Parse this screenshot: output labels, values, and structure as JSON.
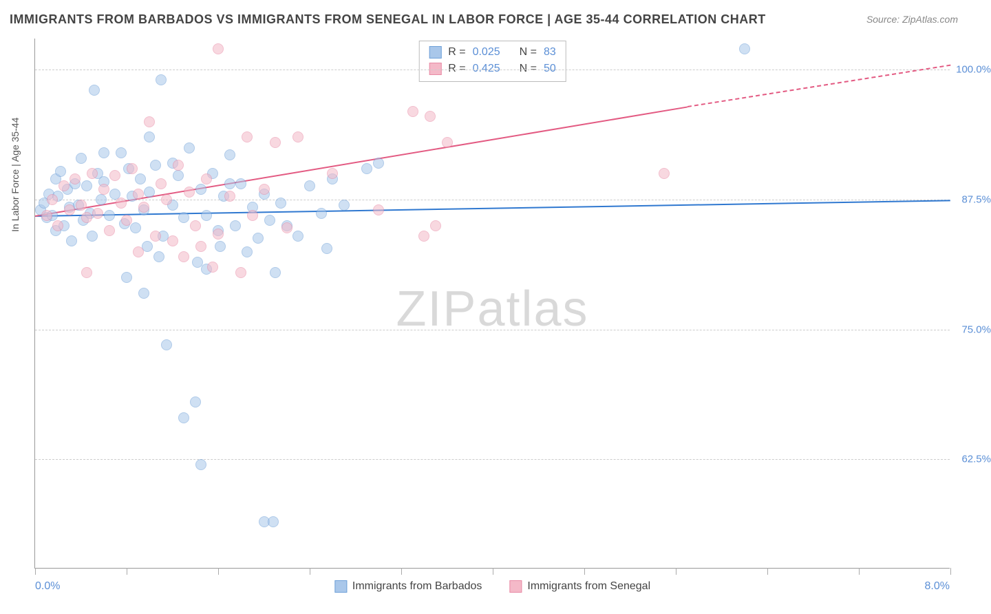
{
  "title": "IMMIGRANTS FROM BARBADOS VS IMMIGRANTS FROM SENEGAL IN LABOR FORCE | AGE 35-44 CORRELATION CHART",
  "source": "Source: ZipAtlas.com",
  "watermark": {
    "left": "ZIP",
    "right": "atlas"
  },
  "chart": {
    "type": "scatter",
    "y_axis_title": "In Labor Force | Age 35-44",
    "xlim": [
      0.0,
      8.0
    ],
    "ylim": [
      52.0,
      103.0
    ],
    "y_ticks": [
      62.5,
      75.0,
      87.5,
      100.0
    ],
    "y_tick_labels": [
      "62.5%",
      "75.0%",
      "87.5%",
      "100.0%"
    ],
    "x_tick_positions": [
      0.0,
      0.8,
      1.6,
      2.4,
      3.2,
      4.0,
      4.8,
      5.6,
      6.4,
      7.2,
      8.0
    ],
    "x_label_min": "0.0%",
    "x_label_max": "8.0%",
    "background_color": "#ffffff",
    "grid_color": "#cccccc",
    "axis_value_color": "#5b8fd6",
    "series": [
      {
        "name": "Immigrants from Barbados",
        "fill": "#a9c7ea",
        "stroke": "#6fa0d8",
        "fill_opacity": 0.55,
        "marker_radius": 8,
        "R": "0.025",
        "N": "83",
        "trend": {
          "x1": 0.0,
          "y1": 86.0,
          "x2": 8.0,
          "y2": 87.5,
          "color": "#2f78d0",
          "dash_from_x": 8.5
        },
        "points": [
          [
            0.05,
            86.5
          ],
          [
            0.08,
            87.2
          ],
          [
            0.1,
            85.8
          ],
          [
            0.12,
            88.0
          ],
          [
            0.15,
            86.0
          ],
          [
            0.18,
            89.5
          ],
          [
            0.18,
            84.5
          ],
          [
            0.2,
            87.8
          ],
          [
            0.22,
            90.2
          ],
          [
            0.25,
            85.0
          ],
          [
            0.28,
            88.5
          ],
          [
            0.3,
            86.8
          ],
          [
            0.32,
            83.5
          ],
          [
            0.35,
            89.0
          ],
          [
            0.38,
            87.0
          ],
          [
            0.4,
            91.5
          ],
          [
            0.42,
            85.5
          ],
          [
            0.45,
            88.8
          ],
          [
            0.48,
            86.2
          ],
          [
            0.5,
            84.0
          ],
          [
            0.55,
            90.0
          ],
          [
            0.58,
            87.5
          ],
          [
            0.6,
            89.2
          ],
          [
            0.65,
            86.0
          ],
          [
            0.7,
            88.0
          ],
          [
            0.75,
            92.0
          ],
          [
            0.78,
            85.2
          ],
          [
            0.82,
            90.5
          ],
          [
            0.85,
            87.8
          ],
          [
            0.88,
            84.8
          ],
          [
            0.92,
            89.5
          ],
          [
            0.95,
            86.5
          ],
          [
            0.98,
            83.0
          ],
          [
            1.0,
            88.2
          ],
          [
            1.05,
            90.8
          ],
          [
            1.1,
            99.0
          ],
          [
            1.12,
            84.0
          ],
          [
            1.2,
            87.0
          ],
          [
            1.25,
            89.8
          ],
          [
            1.3,
            85.8
          ],
          [
            1.35,
            92.5
          ],
          [
            0.52,
            98.0
          ],
          [
            1.42,
            81.5
          ],
          [
            1.45,
            88.5
          ],
          [
            1.5,
            86.0
          ],
          [
            1.55,
            90.0
          ],
          [
            1.6,
            84.5
          ],
          [
            1.65,
            87.8
          ],
          [
            1.7,
            91.8
          ],
          [
            1.75,
            85.0
          ],
          [
            1.8,
            89.0
          ],
          [
            1.85,
            82.5
          ],
          [
            1.9,
            86.8
          ],
          [
            1.95,
            83.8
          ],
          [
            2.0,
            88.0
          ],
          [
            2.05,
            85.5
          ],
          [
            2.1,
            80.5
          ],
          [
            2.15,
            87.2
          ],
          [
            1.15,
            73.5
          ],
          [
            1.4,
            68.0
          ],
          [
            1.45,
            62.0
          ],
          [
            2.0,
            56.5
          ],
          [
            2.08,
            56.5
          ],
          [
            1.3,
            66.5
          ],
          [
            0.8,
            80.0
          ],
          [
            0.95,
            78.5
          ],
          [
            1.08,
            82.0
          ],
          [
            1.5,
            80.8
          ],
          [
            1.62,
            83.0
          ],
          [
            2.3,
            84.0
          ],
          [
            2.4,
            88.8
          ],
          [
            2.5,
            86.2
          ],
          [
            2.55,
            82.8
          ],
          [
            2.6,
            89.5
          ],
          [
            0.6,
            92.0
          ],
          [
            1.0,
            93.5
          ],
          [
            1.2,
            91.0
          ],
          [
            1.7,
            89.0
          ],
          [
            2.2,
            85.0
          ],
          [
            6.2,
            102.0
          ],
          [
            3.0,
            91.0
          ],
          [
            2.7,
            87.0
          ],
          [
            2.9,
            90.5
          ]
        ]
      },
      {
        "name": "Immigrants from Senegal",
        "fill": "#f4b9c8",
        "stroke": "#e88aa5",
        "fill_opacity": 0.55,
        "marker_radius": 8,
        "R": "0.425",
        "N": "50",
        "trend": {
          "x1": 0.0,
          "y1": 86.0,
          "x2": 5.7,
          "y2": 96.5,
          "x2_dash": 8.0,
          "y2_dash": 100.5,
          "color": "#e35a82"
        },
        "points": [
          [
            0.1,
            86.0
          ],
          [
            0.15,
            87.5
          ],
          [
            0.2,
            85.0
          ],
          [
            0.25,
            88.8
          ],
          [
            0.3,
            86.5
          ],
          [
            0.35,
            89.5
          ],
          [
            0.4,
            87.0
          ],
          [
            0.45,
            85.8
          ],
          [
            0.5,
            90.0
          ],
          [
            0.55,
            86.2
          ],
          [
            0.6,
            88.5
          ],
          [
            0.65,
            84.5
          ],
          [
            0.7,
            89.8
          ],
          [
            0.75,
            87.2
          ],
          [
            0.8,
            85.5
          ],
          [
            0.85,
            90.5
          ],
          [
            0.9,
            88.0
          ],
          [
            0.95,
            86.8
          ],
          [
            1.0,
            95.0
          ],
          [
            1.05,
            84.0
          ],
          [
            1.1,
            89.0
          ],
          [
            1.15,
            87.5
          ],
          [
            1.2,
            83.5
          ],
          [
            1.25,
            90.8
          ],
          [
            1.3,
            82.0
          ],
          [
            1.35,
            88.2
          ],
          [
            1.4,
            85.0
          ],
          [
            1.45,
            83.0
          ],
          [
            1.5,
            89.5
          ],
          [
            1.6,
            84.2
          ],
          [
            1.7,
            87.8
          ],
          [
            1.8,
            80.5
          ],
          [
            1.85,
            93.5
          ],
          [
            1.9,
            86.0
          ],
          [
            2.0,
            88.5
          ],
          [
            2.1,
            93.0
          ],
          [
            2.2,
            84.8
          ],
          [
            2.3,
            93.5
          ],
          [
            1.6,
            102.0
          ],
          [
            3.3,
            96.0
          ],
          [
            3.45,
            95.5
          ],
          [
            3.5,
            85.0
          ],
          [
            3.4,
            84.0
          ],
          [
            3.6,
            93.0
          ],
          [
            2.6,
            90.0
          ],
          [
            5.5,
            90.0
          ],
          [
            3.0,
            86.5
          ],
          [
            0.45,
            80.5
          ],
          [
            0.9,
            82.5
          ],
          [
            1.55,
            81.0
          ]
        ]
      }
    ]
  },
  "legend": {
    "items": [
      {
        "label": "Immigrants from Barbados",
        "fill": "#a9c7ea",
        "stroke": "#6fa0d8"
      },
      {
        "label": "Immigrants from Senegal",
        "fill": "#f4b9c8",
        "stroke": "#e88aa5"
      }
    ]
  }
}
